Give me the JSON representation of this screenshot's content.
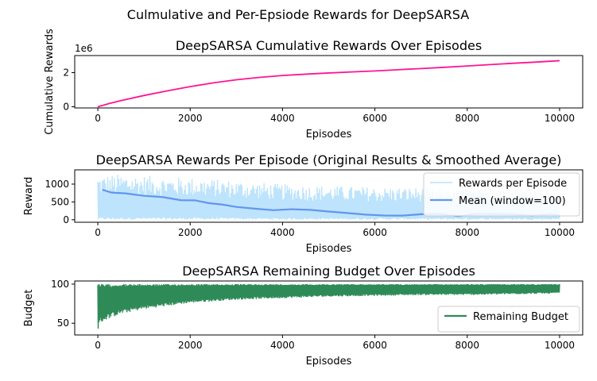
{
  "figure": {
    "suptitle": "Culmulative and Per-Epsiode Rewards for DeepSARSA"
  },
  "chart_data": [
    {
      "type": "line",
      "title": "DeepSARSA Cumulative Rewards Over Episodes",
      "xlabel": "Episodes",
      "ylabel": "Cumulative Rewards",
      "offset_label": "1e6",
      "xlim": [
        -500,
        10500
      ],
      "ylim": [
        -0.07,
        3.0
      ],
      "xticks": [
        0,
        2000,
        4000,
        6000,
        8000,
        10000
      ],
      "yticks": [
        0,
        2
      ],
      "grid": false,
      "series": [
        {
          "color": "#ff1493",
          "x": [
            0,
            250,
            500,
            1000,
            1500,
            2000,
            2500,
            3000,
            3500,
            4000,
            4500,
            5000,
            5500,
            6000,
            6500,
            7000,
            7500,
            8000,
            8500,
            9000,
            9500,
            10000
          ],
          "y": [
            0,
            0.19,
            0.36,
            0.66,
            0.93,
            1.18,
            1.4,
            1.58,
            1.72,
            1.83,
            1.91,
            1.98,
            2.04,
            2.1,
            2.17,
            2.24,
            2.31,
            2.39,
            2.47,
            2.55,
            2.62,
            2.7
          ]
        }
      ]
    },
    {
      "type": "line",
      "title": "DeepSARSA Rewards Per Episode (Original Results & Smoothed Average)",
      "xlabel": "Episodes",
      "ylabel": "Reward",
      "xlim": [
        -500,
        10500
      ],
      "ylim": [
        -70,
        1400
      ],
      "xticks": [
        0,
        2000,
        4000,
        6000,
        8000,
        10000
      ],
      "yticks": [
        0,
        500,
        1000
      ],
      "grid": false,
      "legend": "upper right",
      "series": [
        {
          "name": "Rewards per Episode",
          "color": "#87cefa",
          "style": "noisy-band",
          "x": [
            0,
            500,
            1000,
            1500,
            2000,
            2500,
            3000,
            3500,
            4000,
            5000,
            6000,
            7000,
            8000,
            9000,
            10000
          ],
          "low": [
            0,
            0,
            0,
            0,
            0,
            0,
            0,
            0,
            0,
            0,
            0,
            0,
            0,
            0,
            0
          ],
          "high": [
            1250,
            1280,
            1250,
            1200,
            1180,
            1150,
            1100,
            1050,
            1000,
            950,
            920,
            900,
            900,
            880,
            850
          ]
        },
        {
          "name": "Mean (window=100)",
          "color": "#6495ed",
          "x": [
            100,
            300,
            600,
            1000,
            1400,
            1800,
            2100,
            2400,
            2700,
            3000,
            3400,
            3800,
            4200,
            4600,
            5000,
            5400,
            5800,
            6200,
            6600,
            7000,
            7400,
            7800,
            8200,
            8600,
            9000,
            9400,
            9800,
            10000
          ],
          "y": [
            820,
            780,
            760,
            700,
            640,
            560,
            520,
            450,
            400,
            370,
            330,
            290,
            280,
            250,
            210,
            180,
            160,
            110,
            120,
            140,
            150,
            130,
            160,
            140,
            150,
            120,
            130,
            130
          ]
        }
      ]
    },
    {
      "type": "line",
      "title": "DeepSARSA Remaining Budget Over Episodes",
      "xlabel": "Episodes",
      "ylabel": "Budget",
      "xlim": [
        -500,
        10500
      ],
      "ylim": [
        35,
        104
      ],
      "xticks": [
        0,
        2000,
        4000,
        6000,
        8000,
        10000
      ],
      "yticks": [
        50,
        100
      ],
      "grid": false,
      "legend": "lower right",
      "series": [
        {
          "name": "Remaining Budget",
          "color": "#2e8b57",
          "style": "noisy-band",
          "x": [
            0,
            50,
            200,
            500,
            1000,
            1500,
            2000,
            3000,
            4000,
            5000,
            6000,
            7000,
            8000,
            9000,
            10000
          ],
          "low": [
            40,
            50,
            55,
            62,
            68,
            72,
            76,
            80,
            82,
            84,
            85,
            86,
            86,
            87,
            88
          ],
          "high": [
            100,
            100,
            100,
            100,
            100,
            100,
            100,
            100,
            100,
            100,
            100,
            100,
            100,
            100,
            100
          ]
        }
      ]
    }
  ]
}
